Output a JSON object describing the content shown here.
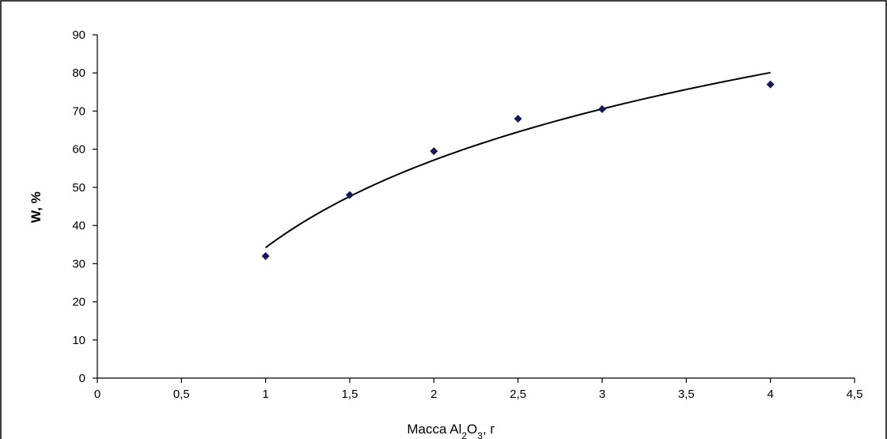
{
  "chart_data": {
    "type": "scatter",
    "x": [
      1,
      1.5,
      2,
      2.5,
      3,
      4
    ],
    "y": [
      32,
      48,
      59.5,
      68,
      70.5,
      77
    ],
    "xlabel": {
      "main": "Macca Al",
      "sub1": "2",
      "mid": "O",
      "sub2": "3",
      "tail": ", г"
    },
    "ylabel": "W, %",
    "xlim": [
      0,
      4.5
    ],
    "ylim": [
      0,
      90
    ],
    "x_ticks": [
      0,
      0.5,
      1,
      1.5,
      2,
      2.5,
      3,
      3.5,
      4,
      4.5
    ],
    "x_tick_labels": [
      "0",
      "0,5",
      "1",
      "1,5",
      "2",
      "2,5",
      "3",
      "3,5",
      "4",
      "4,5"
    ],
    "y_ticks": [
      0,
      10,
      20,
      30,
      40,
      50,
      60,
      70,
      80,
      90
    ],
    "y_tick_labels": [
      "0",
      "10",
      "20",
      "30",
      "40",
      "50",
      "60",
      "70",
      "80",
      "90"
    ],
    "grid": false,
    "trendline": {
      "type": "logarithmic",
      "from_x": 1,
      "to_x": 4,
      "coef": 33.1,
      "intercept": 34.2
    },
    "marker_color": "#16165e",
    "line_color": "#000000"
  }
}
